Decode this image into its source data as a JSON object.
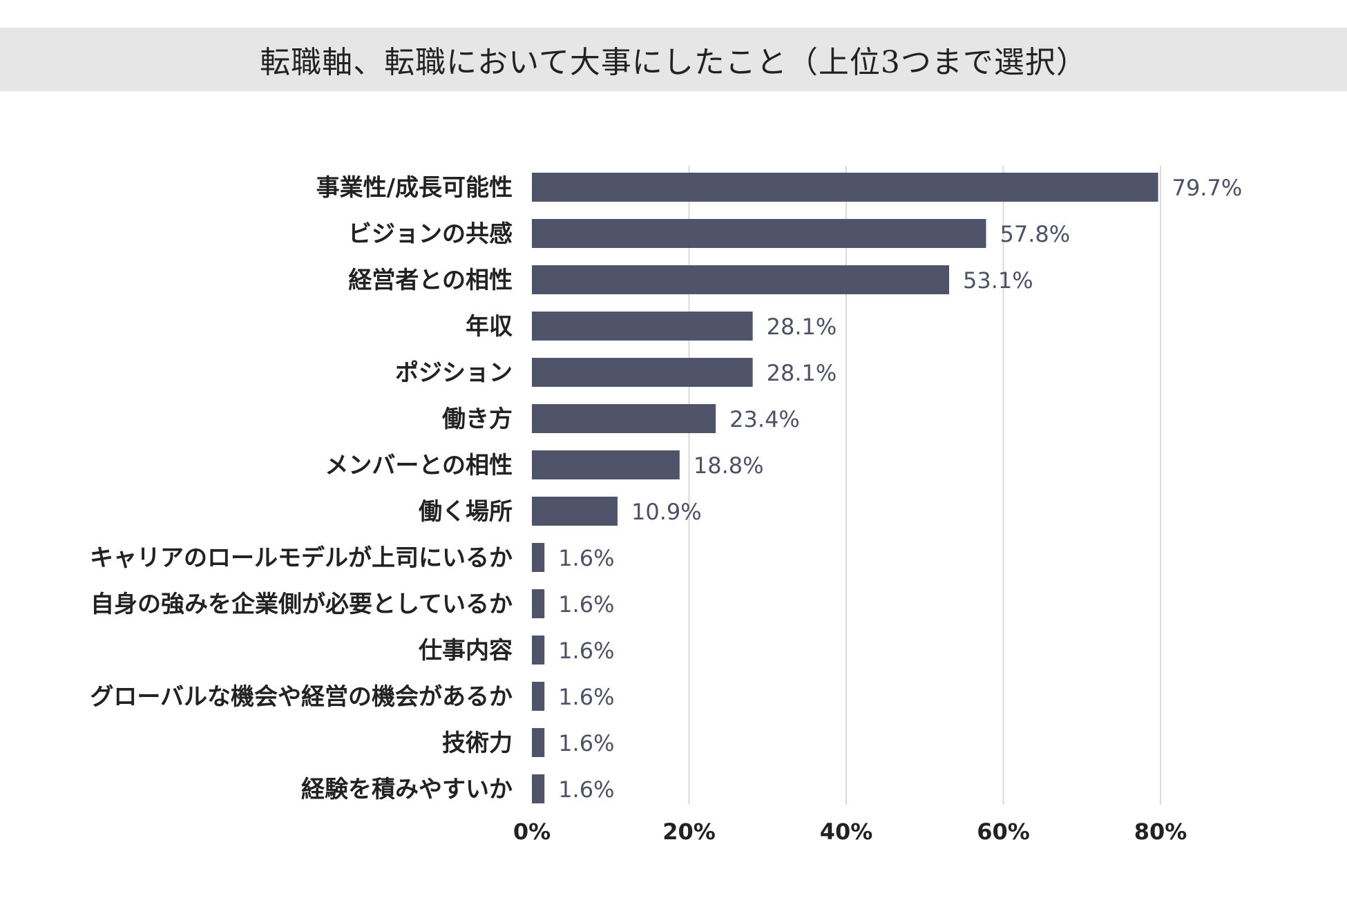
{
  "chart_data": {
    "type": "bar",
    "orientation": "horizontal",
    "title": "転職軸、転職において大事にしたこと（上位3つまで選択）",
    "categories": [
      "事業性/成長可能性",
      "ビジョンの共感",
      "経営者との相性",
      "年収",
      "ポジション",
      "働き方",
      "メンバーとの相性",
      "働く場所",
      "キャリアのロールモデルが上司にいるか",
      "自身の強みを企業側が必要としているか",
      "仕事内容",
      "グローバルな機会や経営の機会があるか",
      "技術力",
      "経験を積みやすいか"
    ],
    "values": [
      79.7,
      57.8,
      53.1,
      28.1,
      28.1,
      23.4,
      18.8,
      10.9,
      1.6,
      1.6,
      1.6,
      1.6,
      1.6,
      1.6
    ],
    "value_labels": [
      "79.7%",
      "57.8%",
      "53.1%",
      "28.1%",
      "28.1%",
      "23.4%",
      "18.8%",
      "10.9%",
      "1.6%",
      "1.6%",
      "1.6%",
      "1.6%",
      "1.6%",
      "1.6%"
    ],
    "xlim": [
      0,
      80
    ],
    "xticks": [
      0,
      20,
      40,
      60,
      80
    ],
    "xtick_labels": [
      "0%",
      "20%",
      "40%",
      "60%",
      "80%"
    ],
    "grid": "vertical",
    "colors": {
      "bar": "#50546a",
      "value_text": "#4e5068",
      "grid": "#d9d9d9",
      "title_band": "#e6e6e6"
    }
  }
}
